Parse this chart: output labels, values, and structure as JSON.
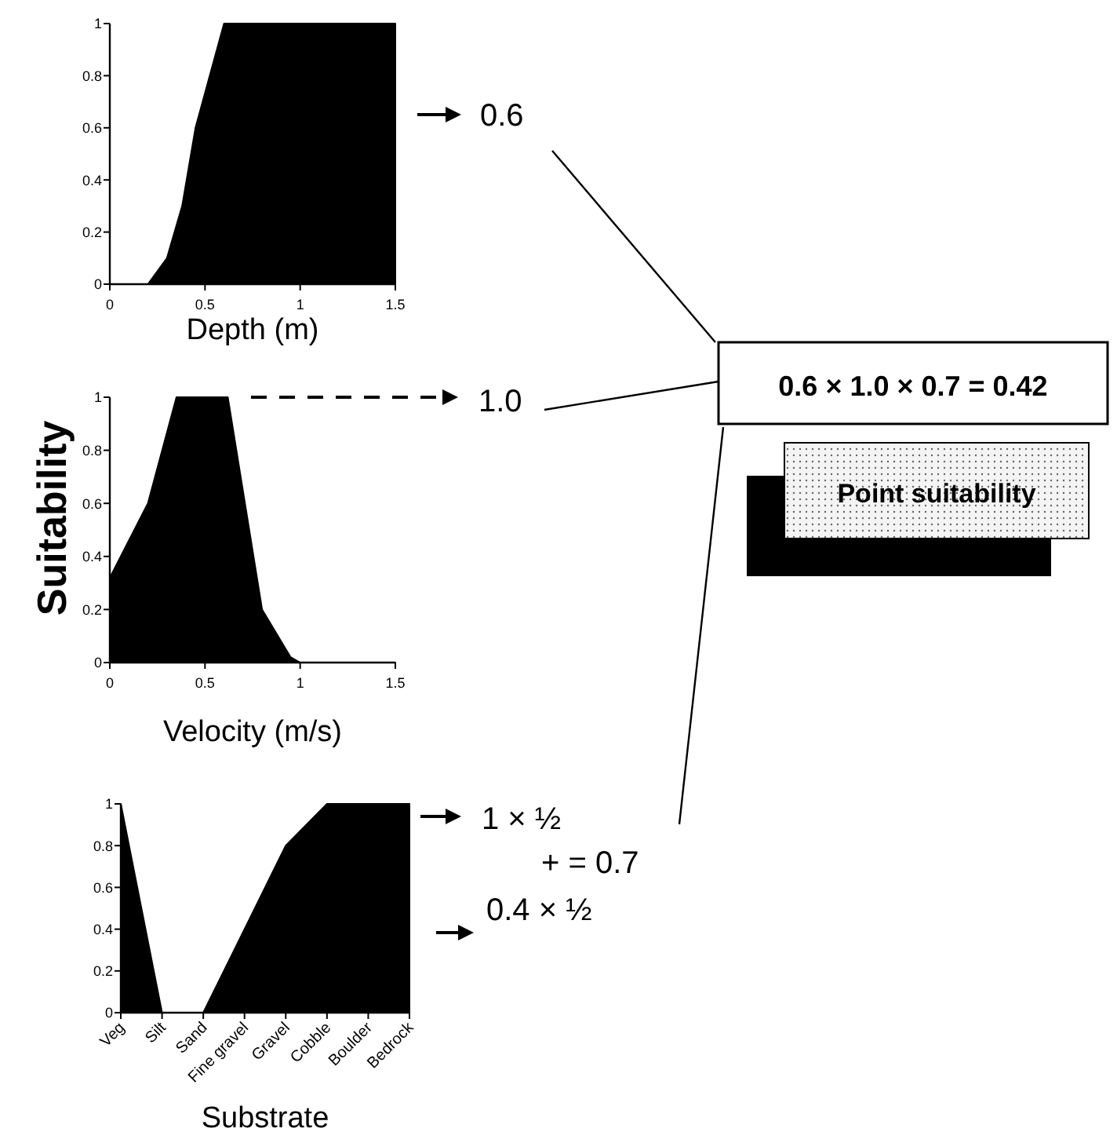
{
  "chart_data": [
    {
      "type": "area",
      "x": [
        0,
        0.2,
        0.3,
        0.38,
        0.45,
        0.6,
        1.5
      ],
      "values": [
        0,
        0,
        0.1,
        0.3,
        0.6,
        1,
        1
      ],
      "color": "#000000",
      "xlim": [
        0,
        1.5
      ],
      "ylim": [
        0,
        1
      ],
      "xticks": [
        0,
        0.5,
        1,
        1.5
      ],
      "yticks": [
        0,
        0.2,
        0.4,
        0.6,
        0.8,
        1
      ],
      "xlabel": "Depth (m)",
      "annotations": [
        "0.6"
      ]
    },
    {
      "type": "area",
      "x": [
        0,
        0.2,
        0.35,
        0.62,
        0.8,
        0.95,
        1.0,
        1.5
      ],
      "values": [
        0.32,
        0.6,
        1,
        1,
        0.2,
        0.02,
        0,
        0
      ],
      "color": "#000000",
      "xlim": [
        0,
        1.5
      ],
      "ylim": [
        0,
        1
      ],
      "xticks": [
        0,
        0.5,
        1,
        1.5
      ],
      "yticks": [
        0,
        0.2,
        0.4,
        0.6,
        0.8,
        1
      ],
      "xlabel": "Velocity (m/s)",
      "ylabel": "Suitability",
      "annotations": [
        "1.0",
        "0.6 × 1.0 × 0.7 = 0.42",
        "Point suitability"
      ]
    },
    {
      "type": "area",
      "categories": [
        "Veg",
        "Silt",
        "Sand",
        "Fine gravel",
        "Gravel",
        "Cobble",
        "Boulder",
        "Bedrock"
      ],
      "values": [
        1,
        0,
        0,
        0.4,
        0.8,
        1,
        1,
        1
      ],
      "color": "#000000",
      "ylim": [
        0,
        1
      ],
      "yticks": [
        0,
        0.2,
        0.4,
        0.6,
        0.8,
        1
      ],
      "xlabel": "Substrate",
      "annotations": [
        "1 × ½",
        "+   =   0.7",
        "0.4 × ½"
      ]
    }
  ]
}
